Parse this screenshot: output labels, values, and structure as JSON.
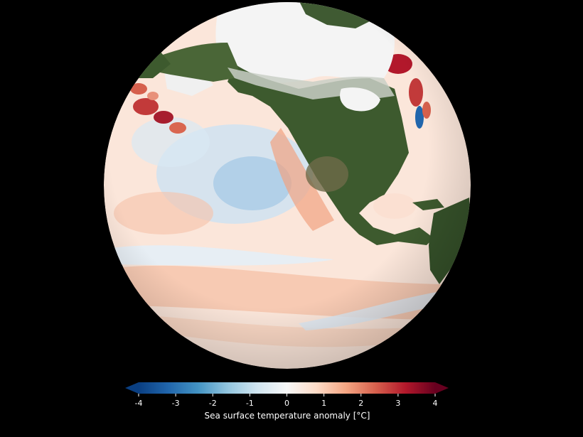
{
  "colorbar": {
    "label": "Sea surface temperature anomaly [°C]",
    "ticks": [
      "-4",
      "-3",
      "-2",
      "-1",
      "0",
      "1",
      "2",
      "3",
      "4"
    ],
    "range": [
      -4,
      4
    ],
    "extend": "both",
    "colors": [
      "#0a3f82",
      "#2166ac",
      "#4393c3",
      "#92c5de",
      "#d1e5f0",
      "#f7f7f7",
      "#fddbc7",
      "#f4a582",
      "#d6604d",
      "#b2182b",
      "#67001f"
    ]
  },
  "map": {
    "projection": "orthographic",
    "background": "#000000",
    "land_color": "#3d5a2e",
    "ice_color": "#f4f4f4",
    "ocean_base": "#fbe3d6"
  }
}
